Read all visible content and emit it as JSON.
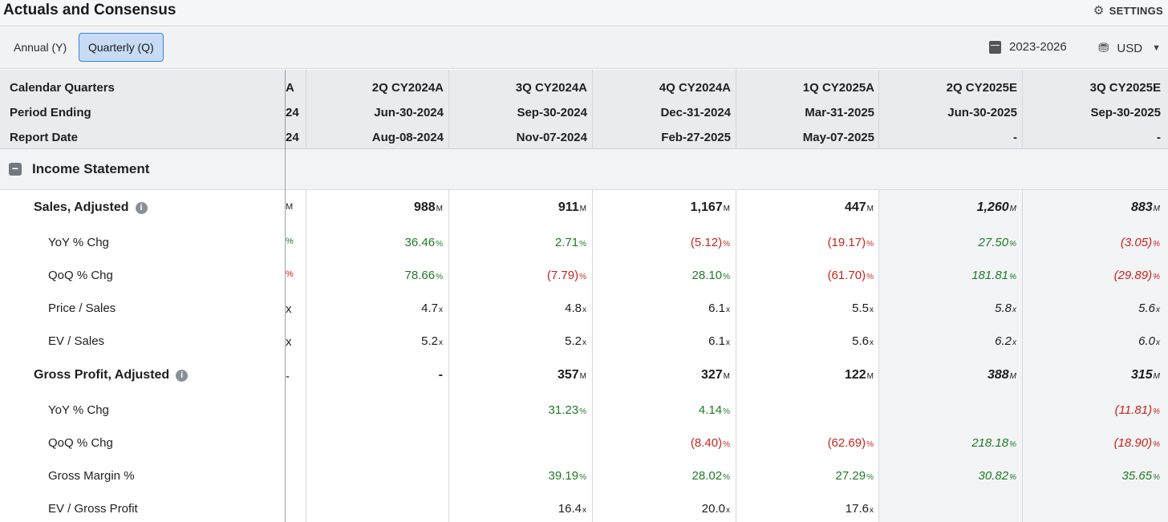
{
  "header": {
    "title": "Actuals and Consensus",
    "settings_label": "SETTINGS"
  },
  "toolbar": {
    "tabs": [
      {
        "label": "Annual (Y)"
      },
      {
        "label": "Quarterly (Q)"
      }
    ],
    "date_range": "2023-2026",
    "currency": "USD"
  },
  "grid": {
    "row_headers": {
      "period": "Calendar Quarters",
      "ending": "Period Ending",
      "report": "Report Date"
    },
    "partial_column": {
      "period": "A",
      "ending": "24",
      "report": "24"
    },
    "columns": [
      {
        "period": "2Q CY2024A",
        "ending": "Jun-30-2024",
        "report": "Aug-08-2024"
      },
      {
        "period": "3Q CY2024A",
        "ending": "Sep-30-2024",
        "report": "Nov-07-2024"
      },
      {
        "period": "4Q CY2024A",
        "ending": "Dec-31-2024",
        "report": "Feb-27-2025"
      },
      {
        "period": "1Q CY2025A",
        "ending": "Mar-31-2025",
        "report": "May-07-2025"
      },
      {
        "period": "2Q CY2025E",
        "ending": "Jun-30-2025",
        "report": "-"
      },
      {
        "period": "3Q CY2025E",
        "ending": "Sep-30-2025",
        "report": "-"
      }
    ],
    "section": {
      "title": "Income Statement",
      "toggle": "−"
    },
    "info_glyph": "i",
    "rows": [
      {
        "label": "Sales, Adjusted",
        "type": "main",
        "info": true,
        "partial": "M",
        "cells": [
          {
            "v": "988",
            "u": "M"
          },
          {
            "v": "911",
            "u": "M"
          },
          {
            "v": "1,167",
            "u": "M"
          },
          {
            "v": "447",
            "u": "M"
          },
          {
            "v": "1,260",
            "u": "M"
          },
          {
            "v": "883",
            "u": "M"
          }
        ]
      },
      {
        "label": "YoY % Chg",
        "type": "sub",
        "partial": "%",
        "cells": [
          {
            "v": "36.46",
            "u": "%",
            "c": "pos"
          },
          {
            "v": "2.71",
            "u": "%",
            "c": "pos"
          },
          {
            "v": "(5.12)",
            "u": "%",
            "c": "neg"
          },
          {
            "v": "(19.17)",
            "u": "%",
            "c": "neg"
          },
          {
            "v": "27.50",
            "u": "%",
            "c": "pos"
          },
          {
            "v": "(3.05)",
            "u": "%",
            "c": "neg"
          }
        ]
      },
      {
        "label": "QoQ % Chg",
        "type": "sub",
        "partial": "%",
        "cells": [
          {
            "v": "78.66",
            "u": "%",
            "c": "pos"
          },
          {
            "v": "(7.79)",
            "u": "%",
            "c": "neg"
          },
          {
            "v": "28.10",
            "u": "%",
            "c": "pos"
          },
          {
            "v": "(61.70)",
            "u": "%",
            "c": "neg"
          },
          {
            "v": "181.81",
            "u": "%",
            "c": "pos"
          },
          {
            "v": "(29.89)",
            "u": "%",
            "c": "neg"
          }
        ]
      },
      {
        "label": "Price / Sales",
        "type": "sub",
        "partial": "x",
        "cells": [
          {
            "v": "4.7",
            "u": "x"
          },
          {
            "v": "4.8",
            "u": "x"
          },
          {
            "v": "6.1",
            "u": "x"
          },
          {
            "v": "5.5",
            "u": "x"
          },
          {
            "v": "5.8",
            "u": "x"
          },
          {
            "v": "5.6",
            "u": "x"
          }
        ]
      },
      {
        "label": "EV / Sales",
        "type": "sub",
        "partial": "x",
        "cells": [
          {
            "v": "5.2",
            "u": "x"
          },
          {
            "v": "5.2",
            "u": "x"
          },
          {
            "v": "6.1",
            "u": "x"
          },
          {
            "v": "5.6",
            "u": "x"
          },
          {
            "v": "6.2",
            "u": "x"
          },
          {
            "v": "6.0",
            "u": "x"
          }
        ]
      },
      {
        "label": "Gross Profit, Adjusted",
        "type": "main",
        "info": true,
        "partial": "-",
        "cells": [
          {
            "v": "-",
            "u": ""
          },
          {
            "v": "357",
            "u": "M"
          },
          {
            "v": "327",
            "u": "M"
          },
          {
            "v": "122",
            "u": "M"
          },
          {
            "v": "388",
            "u": "M"
          },
          {
            "v": "315",
            "u": "M"
          }
        ]
      },
      {
        "label": "YoY % Chg",
        "type": "sub",
        "partial": "",
        "cells": [
          {
            "v": "",
            "u": ""
          },
          {
            "v": "31.23",
            "u": "%",
            "c": "pos"
          },
          {
            "v": "4.14",
            "u": "%",
            "c": "pos"
          },
          {
            "v": "",
            "u": ""
          },
          {
            "v": "",
            "u": ""
          },
          {
            "v": "(11.81)",
            "u": "%",
            "c": "neg"
          }
        ]
      },
      {
        "label": "QoQ % Chg",
        "type": "sub",
        "partial": "",
        "cells": [
          {
            "v": "",
            "u": ""
          },
          {
            "v": "",
            "u": ""
          },
          {
            "v": "(8.40)",
            "u": "%",
            "c": "neg"
          },
          {
            "v": "(62.69)",
            "u": "%",
            "c": "neg"
          },
          {
            "v": "218.18",
            "u": "%",
            "c": "pos"
          },
          {
            "v": "(18.90)",
            "u": "%",
            "c": "neg"
          }
        ]
      },
      {
        "label": "Gross Margin %",
        "type": "sub",
        "partial": "",
        "cells": [
          {
            "v": "",
            "u": ""
          },
          {
            "v": "39.19",
            "u": "%",
            "c": "pos"
          },
          {
            "v": "28.02",
            "u": "%",
            "c": "pos"
          },
          {
            "v": "27.29",
            "u": "%",
            "c": "pos"
          },
          {
            "v": "30.82",
            "u": "%",
            "c": "pos"
          },
          {
            "v": "35.65",
            "u": "%",
            "c": "pos"
          }
        ]
      },
      {
        "label": "EV / Gross Profit",
        "type": "sub",
        "partial": "",
        "cells": [
          {
            "v": "",
            "u": ""
          },
          {
            "v": "16.4",
            "u": "x"
          },
          {
            "v": "20.0",
            "u": "x"
          },
          {
            "v": "17.6",
            "u": "x"
          },
          {
            "v": "",
            "u": ""
          },
          {
            "v": "",
            "u": ""
          }
        ]
      }
    ],
    "estimate_columns": [
      4,
      5
    ]
  }
}
